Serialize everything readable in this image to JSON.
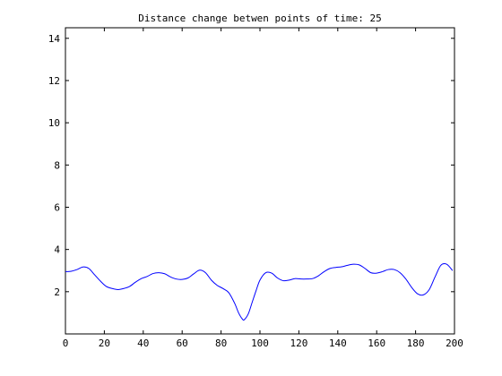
{
  "chart_data": {
    "type": "line",
    "title": "Distance change betwen points of time: 25",
    "xlabel": "",
    "ylabel": "",
    "xlim": [
      0,
      200
    ],
    "ylim": [
      0,
      14.5
    ],
    "xticks": [
      0,
      20,
      40,
      60,
      80,
      100,
      120,
      140,
      160,
      180,
      200
    ],
    "yticks": [
      2,
      4,
      6,
      8,
      10,
      12,
      14
    ],
    "grid": false,
    "series": [
      {
        "color": "#0000ff",
        "x": [
          0,
          3,
          6,
          9,
          12,
          15,
          18,
          21,
          24,
          27,
          30,
          33,
          36,
          39,
          42,
          45,
          48,
          51,
          54,
          57,
          60,
          63,
          66,
          69,
          72,
          75,
          78,
          81,
          84,
          87,
          89,
          91,
          92,
          94,
          96,
          98,
          100,
          103,
          106,
          109,
          112,
          115,
          118,
          121,
          124,
          127,
          130,
          133,
          136,
          139,
          142,
          145,
          148,
          151,
          154,
          157,
          160,
          163,
          166,
          169,
          172,
          175,
          178,
          181,
          184,
          187,
          190,
          193,
          196,
          199
        ],
        "y": [
          2.95,
          2.97,
          3.05,
          3.17,
          3.1,
          2.8,
          2.5,
          2.25,
          2.15,
          2.1,
          2.15,
          2.25,
          2.45,
          2.62,
          2.72,
          2.86,
          2.9,
          2.85,
          2.7,
          2.6,
          2.58,
          2.65,
          2.85,
          3.02,
          2.9,
          2.55,
          2.3,
          2.15,
          1.95,
          1.45,
          1.0,
          0.7,
          0.68,
          0.95,
          1.5,
          2.05,
          2.55,
          2.9,
          2.88,
          2.65,
          2.52,
          2.55,
          2.62,
          2.6,
          2.6,
          2.62,
          2.75,
          2.95,
          3.1,
          3.15,
          3.18,
          3.25,
          3.3,
          3.27,
          3.1,
          2.9,
          2.88,
          2.95,
          3.05,
          3.05,
          2.9,
          2.6,
          2.2,
          1.9,
          1.85,
          2.1,
          2.7,
          3.25,
          3.3,
          3.0
        ]
      }
    ]
  }
}
